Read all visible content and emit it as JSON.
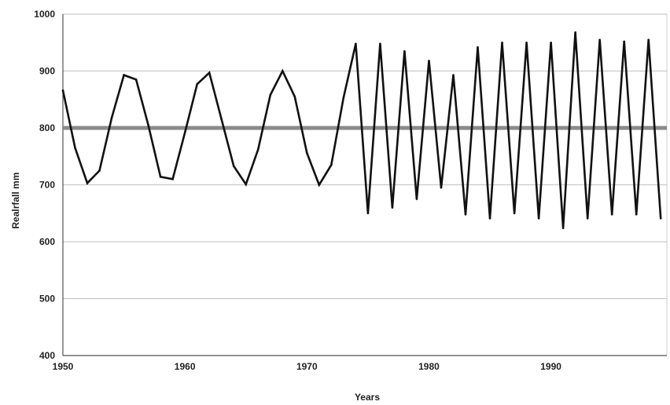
{
  "chart_data": {
    "type": "line",
    "title": "",
    "xlabel": "Years",
    "ylabel": "Realrfall mm",
    "xlim": [
      1950,
      1999.5
    ],
    "ylim": [
      400,
      1000
    ],
    "x_ticks": [
      1950,
      1960,
      1970,
      1980,
      1990
    ],
    "y_ticks": [
      400,
      500,
      600,
      700,
      800,
      900,
      1000
    ],
    "grid": "horizontal",
    "colors": {
      "series": "#111111",
      "reference": "#8a8a8a",
      "grid": "#bfbfbf"
    },
    "reference_line": {
      "y": 800
    },
    "series": [
      {
        "x": [
          1950,
          1951,
          1952,
          1953,
          1954,
          1955,
          1956,
          1957,
          1958,
          1959,
          1960,
          1961,
          1962,
          1963,
          1964,
          1965,
          1966,
          1967,
          1968,
          1969,
          1970,
          1971,
          1972,
          1973,
          1974,
          1975,
          1976,
          1977,
          1978,
          1979,
          1980,
          1981,
          1982,
          1983,
          1984,
          1985,
          1986,
          1987,
          1988,
          1989,
          1990,
          1991,
          1992,
          1993,
          1994,
          1995,
          1996,
          1997,
          1998,
          1999
        ],
        "values": [
          866,
          765,
          703,
          725,
          818,
          893,
          885,
          805,
          714,
          710,
          792,
          877,
          897,
          815,
          733,
          701,
          762,
          858,
          900,
          855,
          756,
          700,
          735,
          853,
          948,
          650,
          948,
          660,
          935,
          675,
          918,
          695,
          893,
          648,
          942,
          641,
          950,
          650,
          950,
          641,
          950,
          624,
          968,
          641,
          955,
          648,
          952,
          648,
          955,
          641
        ]
      }
    ]
  }
}
